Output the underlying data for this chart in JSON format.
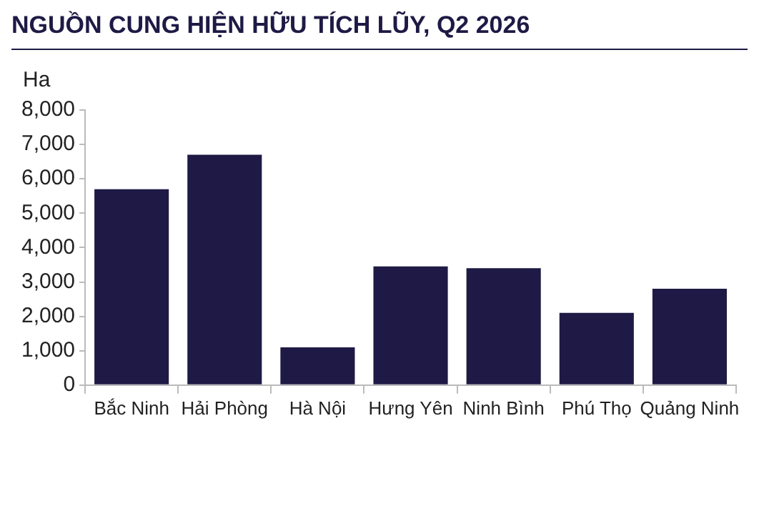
{
  "chart_data": {
    "type": "bar",
    "title": "NGUỒN CUNG HIỆN HỮU TÍCH LŨY, Q2 2026",
    "ylabel": "Ha",
    "categories": [
      "Bắc Ninh",
      "Hải Phòng",
      "Hà Nội",
      "Hưng Yên",
      "Ninh Bình",
      "Phú Thọ",
      "Quảng Ninh"
    ],
    "values": [
      5700,
      6700,
      1100,
      3450,
      3400,
      2100,
      2800
    ],
    "color": "#1e1a45",
    "ylim": [
      0,
      8000
    ],
    "yticks": [
      {
        "value": 0,
        "label": "0"
      },
      {
        "value": 1000,
        "label": "1,000"
      },
      {
        "value": 2000,
        "label": "2,000"
      },
      {
        "value": 3000,
        "label": "3,000"
      },
      {
        "value": 4000,
        "label": "4,000"
      },
      {
        "value": 5000,
        "label": "5,000"
      },
      {
        "value": 6000,
        "label": "6,000"
      },
      {
        "value": 7000,
        "label": "7,000"
      },
      {
        "value": 8000,
        "label": "8,000"
      }
    ],
    "grid": false,
    "legend": false
  }
}
